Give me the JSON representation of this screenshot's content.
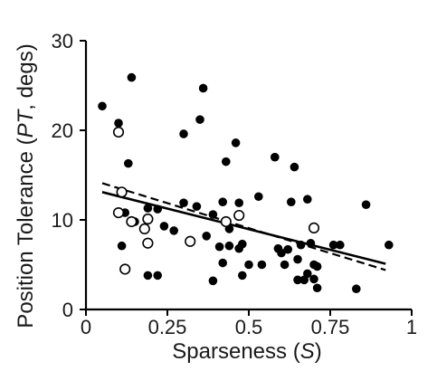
{
  "chart_data": {
    "type": "scatter",
    "title": "",
    "xlabel": {
      "prefix": "Sparseness (",
      "italic": "S",
      "suffix": ")"
    },
    "ylabel": {
      "prefix": "Position Tolerance (",
      "italic": "PT",
      "suffix": ", degs)"
    },
    "xlim": [
      0,
      1
    ],
    "ylim": [
      0,
      30
    ],
    "x_ticks": [
      0,
      0.25,
      0.5,
      0.75,
      1
    ],
    "x_tick_labels": [
      "0",
      "0.25",
      "0.5",
      "0.75",
      "1"
    ],
    "y_ticks": [
      0,
      10,
      20,
      30
    ],
    "y_tick_labels": [
      "0",
      "10",
      "20",
      "30"
    ],
    "grid": false,
    "legend": "none",
    "series": [
      {
        "marker": "filled-circle",
        "color": "#000000",
        "points": [
          [
            0.05,
            22.7
          ],
          [
            0.1,
            20.8
          ],
          [
            0.14,
            25.9
          ],
          [
            0.13,
            16.3
          ],
          [
            0.11,
            7.1
          ],
          [
            0.12,
            10.8
          ],
          [
            0.15,
            9.8
          ],
          [
            0.19,
            3.8
          ],
          [
            0.22,
            3.8
          ],
          [
            0.19,
            11.3
          ],
          [
            0.22,
            11.2
          ],
          [
            0.24,
            9.3
          ],
          [
            0.27,
            8.8
          ],
          [
            0.3,
            19.6
          ],
          [
            0.3,
            11.9
          ],
          [
            0.34,
            11.5
          ],
          [
            0.35,
            21.2
          ],
          [
            0.36,
            24.7
          ],
          [
            0.37,
            8.2
          ],
          [
            0.39,
            10.6
          ],
          [
            0.39,
            3.2
          ],
          [
            0.41,
            7.0
          ],
          [
            0.42,
            12.0
          ],
          [
            0.42,
            5.2
          ],
          [
            0.43,
            16.5
          ],
          [
            0.44,
            9.0
          ],
          [
            0.44,
            7.1
          ],
          [
            0.46,
            18.6
          ],
          [
            0.47,
            11.9
          ],
          [
            0.47,
            6.8
          ],
          [
            0.48,
            7.3
          ],
          [
            0.48,
            3.8
          ],
          [
            0.5,
            5.0
          ],
          [
            0.53,
            12.6
          ],
          [
            0.54,
            5.0
          ],
          [
            0.58,
            17.0
          ],
          [
            0.59,
            6.8
          ],
          [
            0.6,
            6.3
          ],
          [
            0.61,
            5.0
          ],
          [
            0.62,
            6.7
          ],
          [
            0.63,
            12.0
          ],
          [
            0.64,
            15.9
          ],
          [
            0.65,
            3.3
          ],
          [
            0.65,
            5.6
          ],
          [
            0.66,
            7.2
          ],
          [
            0.67,
            3.3
          ],
          [
            0.68,
            12.3
          ],
          [
            0.68,
            4.0
          ],
          [
            0.69,
            7.4
          ],
          [
            0.7,
            3.4
          ],
          [
            0.7,
            5.0
          ],
          [
            0.71,
            2.4
          ],
          [
            0.71,
            4.8
          ],
          [
            0.76,
            7.2
          ],
          [
            0.78,
            7.2
          ],
          [
            0.83,
            2.3
          ],
          [
            0.86,
            11.7
          ],
          [
            0.93,
            7.2
          ]
        ]
      },
      {
        "marker": "open-circle",
        "color": "#000000",
        "points": [
          [
            0.1,
            19.8
          ],
          [
            0.11,
            13.1
          ],
          [
            0.1,
            10.8
          ],
          [
            0.12,
            4.5
          ],
          [
            0.14,
            9.8
          ],
          [
            0.18,
            9.0
          ],
          [
            0.19,
            10.1
          ],
          [
            0.19,
            7.4
          ],
          [
            0.32,
            7.6
          ],
          [
            0.43,
            9.8
          ],
          [
            0.47,
            10.5
          ],
          [
            0.7,
            9.1
          ]
        ]
      }
    ],
    "fit_lines": [
      {
        "style": "solid",
        "x": [
          0.05,
          0.92
        ],
        "y": [
          13.1,
          5.1
        ]
      },
      {
        "style": "dashed",
        "x": [
          0.05,
          0.92
        ],
        "y": [
          14.1,
          4.4
        ]
      }
    ]
  }
}
